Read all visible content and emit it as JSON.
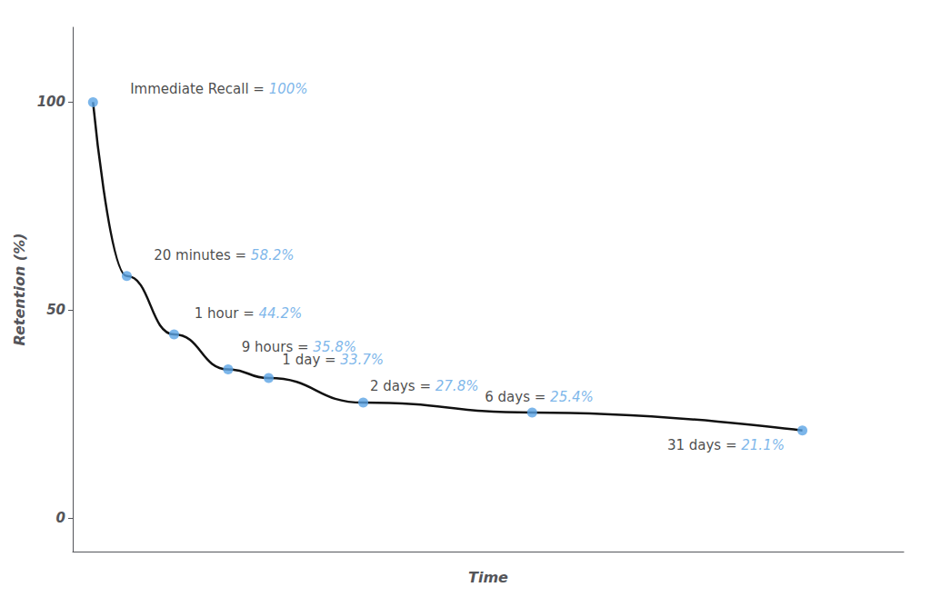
{
  "chart_data": {
    "type": "line",
    "xlabel": "Time",
    "ylabel": "Retention (%)",
    "x": [
      0.0,
      0.5,
      1.2,
      2.0,
      2.6,
      4.0,
      6.5,
      10.5
    ],
    "series": [
      {
        "type": "line",
        "color": "#111111",
        "values": [
          100,
          58.2,
          44.2,
          35.8,
          33.7,
          27.8,
          25.4,
          21.1
        ]
      },
      {
        "type": "scatter",
        "color": "#5BA4E5",
        "values": [
          100,
          58.2,
          44.2,
          35.8,
          33.7,
          27.8,
          25.4,
          21.1
        ]
      }
    ],
    "annotations": [
      {
        "text": "Immediate Recall = ",
        "value_text": "100%",
        "x": 0.55,
        "y": 101.5
      },
      {
        "text": "20 minutes = ",
        "value_text": "58.2%",
        "x": 0.9,
        "y": 61.5
      },
      {
        "text": "1 hour = ",
        "value_text": "44.2%",
        "x": 1.5,
        "y": 47.5
      },
      {
        "text": "9 hours = ",
        "value_text": "35.8%",
        "x": 2.2,
        "y": 39.5
      },
      {
        "text": "1 day = ",
        "value_text": "33.7%",
        "x": 2.8,
        "y": 36.5
      },
      {
        "text": "2 days = ",
        "value_text": "27.8%",
        "x": 4.1,
        "y": 30.0
      },
      {
        "text": "6 days = ",
        "value_text": "25.4%",
        "x": 5.8,
        "y": 27.5
      },
      {
        "text": "31 days = ",
        "value_text": "21.1%",
        "x": 8.5,
        "y": 16.0
      }
    ],
    "xlim": [
      -0.3,
      12.0
    ],
    "ylim": [
      -8,
      118
    ],
    "yticks": [
      0,
      50,
      100
    ],
    "tick_labels": "y",
    "grid": false
  }
}
